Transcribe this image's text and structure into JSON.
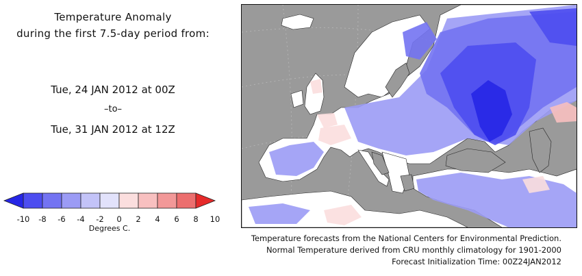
{
  "header": {
    "title_line1": "Temperature Anomaly",
    "title_line2": "during the first 7.5-day period from:",
    "start": "Tue, 24 JAN 2012 at 00Z",
    "separator": "–to–",
    "end": "Tue, 31 JAN 2012 at 12Z"
  },
  "legend": {
    "ticks": [
      "-10",
      "-8",
      "-6",
      "-4",
      "-2",
      "0",
      "2",
      "4",
      "6",
      "8",
      "10"
    ],
    "units": "Degrees C.",
    "colors": [
      "#2626e6",
      "#4d4df0",
      "#7373f2",
      "#9b9bf5",
      "#c3c3f8",
      "#e2e2fb",
      "#fbdede",
      "#f8c0c0",
      "#f29898",
      "#ec6e6e",
      "#e62a2a"
    ]
  },
  "map": {
    "ocean_color": "#9a9a9a",
    "neutral_land_color": "#ffffff"
  },
  "footer": {
    "line1": "Temperature forecasts from the National Centers for Environmental Prediction.",
    "line2": "Normal Temperature derived from CRU monthly climatology for 1901-2000",
    "line3": "Forecast Initialization Time: 00Z24JAN2012"
  }
}
